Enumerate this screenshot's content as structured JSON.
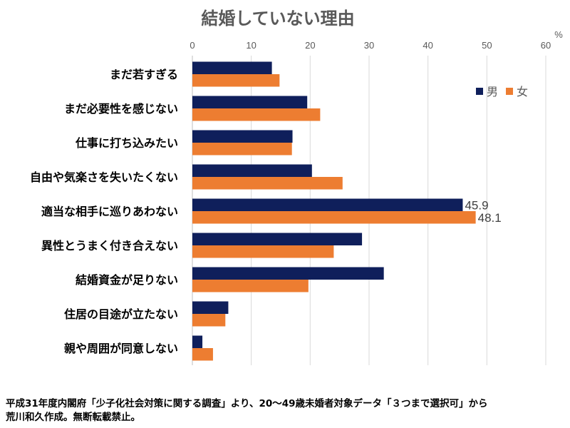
{
  "chart_data": {
    "type": "bar",
    "orientation": "horizontal",
    "title": "結婚していない理由",
    "unit_label": "%",
    "xlim": [
      0,
      60
    ],
    "ticks": [
      "0",
      "10",
      "20",
      "30",
      "40",
      "50",
      "60"
    ],
    "grid": true,
    "legend_position": "top-right",
    "categories": [
      "まだ若すぎる",
      "まだ必要性を感じない",
      "仕事に打ち込みたい",
      "自由や気楽さを失いたくない",
      "適当な相手に巡りあわない",
      "異性とうまく付き合えない",
      "結婚資金が足りない",
      "住居の目途が立たない",
      "親や周囲が同意しない"
    ],
    "series": [
      {
        "name": "男",
        "color": "#0f1f5b",
        "values": [
          13.5,
          19.5,
          17,
          20.3,
          45.9,
          28.8,
          32.5,
          6.1,
          1.7
        ],
        "data_labels": [
          null,
          null,
          null,
          null,
          "45.9",
          null,
          null,
          null,
          null
        ]
      },
      {
        "name": "女",
        "color": "#ed7d31",
        "values": [
          14.8,
          21.7,
          16.9,
          25.5,
          48.1,
          24,
          19.7,
          5.6,
          3.5
        ],
        "data_labels": [
          null,
          null,
          null,
          null,
          "48.1",
          null,
          null,
          null,
          null
        ]
      }
    ]
  },
  "footer": {
    "line1": "平成31年度内閣府「少子化社会対策に関する調査」より、20〜49歳未婚者対象データ「３つまで選択可」から",
    "line2": "荒川和久作成。無断転載禁止。"
  }
}
